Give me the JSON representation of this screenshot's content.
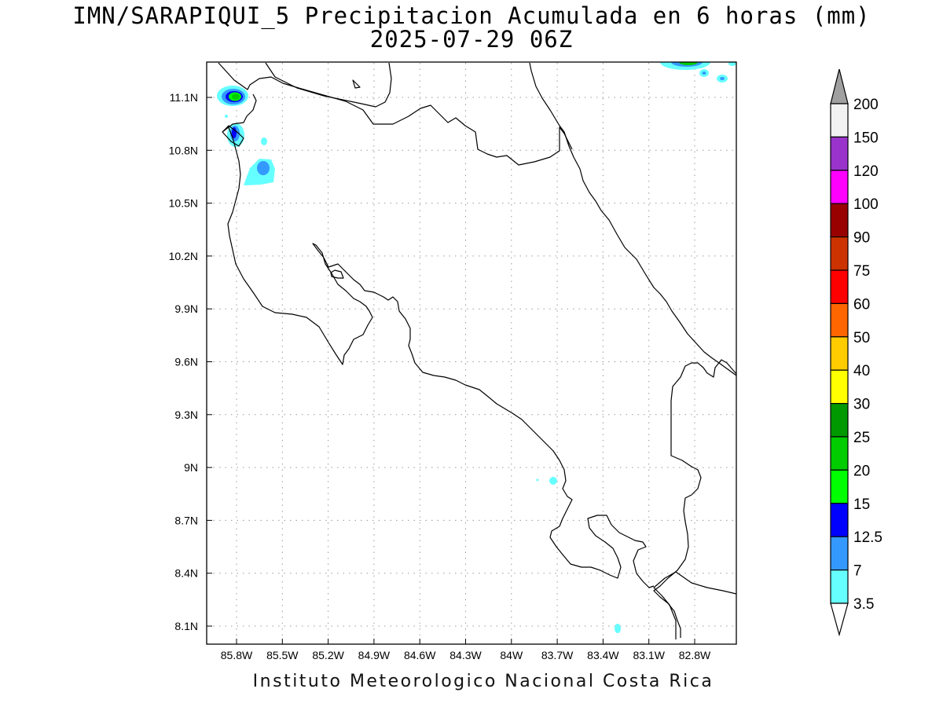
{
  "header": {
    "title": "IMN/SARAPIQUI_5 Precipitacion Acumulada en 6 horas (mm)",
    "subtitle": "2025-07-29 06Z"
  },
  "footer": {
    "credit": "Instituto Meteorologico Nacional Costa Rica"
  },
  "axes": {
    "lon_labels": [
      "85.8W",
      "85.5W",
      "85.2W",
      "84.9W",
      "84.6W",
      "84.3W",
      "84W",
      "83.7W",
      "83.4W",
      "83.1W",
      "82.8W"
    ],
    "lat_labels": [
      "11.1N",
      "10.8N",
      "10.5N",
      "10.2N",
      "9.9N",
      "9.6N",
      "9.3N",
      "9N",
      "8.7N",
      "8.4N",
      "8.1N"
    ],
    "grid": "dotted"
  },
  "colorbar": {
    "units": "mm",
    "labels": [
      "3.5",
      "7",
      "12.5",
      "15",
      "20",
      "25",
      "30",
      "40",
      "50",
      "60",
      "75",
      "90",
      "100",
      "120",
      "150",
      "200"
    ],
    "colors": [
      "#ffffff",
      "#66ffff",
      "#3399ff",
      "#0000ff",
      "#00ff00",
      "#00cc00",
      "#009900",
      "#ffff00",
      "#ffcc00",
      "#ff6600",
      "#ff0000",
      "#cc3300",
      "#990000",
      "#ff00ff",
      "#9933cc",
      "#f2f2f2"
    ],
    "over_color": "#a0a0a0"
  },
  "palette": {
    "c35": "#66ffff",
    "c7": "#3399ff",
    "c125": "#0000ff",
    "c15": "#00ff00",
    "c20": "#00cc00",
    "c25": "#009900"
  }
}
